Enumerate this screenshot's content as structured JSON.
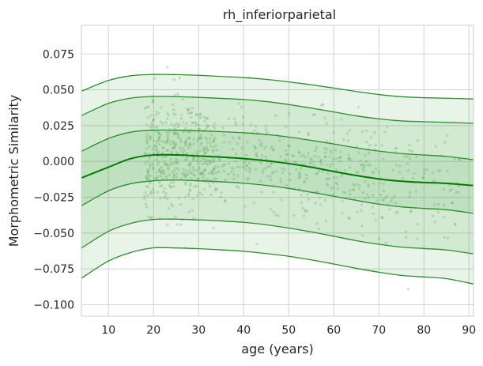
{
  "chart_data": {
    "type": "area",
    "title": "rh_inferiorparietal",
    "xlabel": "age (years)",
    "ylabel": "Morphometric Similarity",
    "xlim": [
      4,
      91
    ],
    "ylim": [
      -0.108,
      0.095
    ],
    "grid": true,
    "legend": "none",
    "xticks": [
      10,
      20,
      30,
      40,
      50,
      60,
      70,
      80,
      90
    ],
    "xtick_labels": [
      "10",
      "20",
      "30",
      "40",
      "50",
      "60",
      "70",
      "80",
      "90"
    ],
    "yticks": [
      0.075,
      0.05,
      0.025,
      0.0,
      -0.025,
      -0.05,
      -0.075,
      -0.1
    ],
    "ytick_labels": [
      "0.075",
      "0.050",
      "0.025",
      "0.000",
      "−0.025",
      "−0.050",
      "−0.075",
      "−0.100"
    ],
    "x": [
      4,
      10,
      15,
      20,
      25,
      30,
      35,
      40,
      45,
      50,
      55,
      60,
      65,
      70,
      75,
      80,
      85,
      91
    ],
    "centiles": [
      {
        "level": "upper_outer",
        "values": [
          0.049,
          0.0565,
          0.0598,
          0.0607,
          0.0606,
          0.0601,
          0.0593,
          0.0585,
          0.0573,
          0.0555,
          0.0535,
          0.0512,
          0.0488,
          0.0467,
          0.0452,
          0.0445,
          0.0441,
          0.0436
        ]
      },
      {
        "level": "upper_mid",
        "values": [
          0.032,
          0.0405,
          0.0442,
          0.0453,
          0.0452,
          0.0447,
          0.044,
          0.0432,
          0.0418,
          0.0397,
          0.0372,
          0.0345,
          0.0318,
          0.0297,
          0.0283,
          0.0277,
          0.0273,
          0.0266
        ]
      },
      {
        "level": "upper_inner",
        "values": [
          0.007,
          0.016,
          0.0205,
          0.0218,
          0.0218,
          0.0214,
          0.0208,
          0.02,
          0.0188,
          0.017,
          0.0147,
          0.0122,
          0.0095,
          0.0072,
          0.0055,
          0.0045,
          0.0035,
          0.0012
        ]
      },
      {
        "level": "median",
        "values": [
          -0.0115,
          -0.004,
          0.002,
          0.0045,
          0.0045,
          0.0038,
          0.003,
          0.002,
          0.0005,
          -0.0015,
          -0.004,
          -0.007,
          -0.0098,
          -0.0122,
          -0.0138,
          -0.0147,
          -0.0153,
          -0.0168
        ]
      },
      {
        "level": "lower_inner",
        "values": [
          -0.031,
          -0.0205,
          -0.0155,
          -0.0135,
          -0.013,
          -0.0135,
          -0.0142,
          -0.0152,
          -0.0167,
          -0.0188,
          -0.0215,
          -0.0243,
          -0.0272,
          -0.0298,
          -0.0317,
          -0.0328,
          -0.0337,
          -0.0362
        ]
      },
      {
        "level": "lower_mid",
        "values": [
          -0.0605,
          -0.0488,
          -0.0432,
          -0.0405,
          -0.0403,
          -0.0408,
          -0.0415,
          -0.0425,
          -0.0442,
          -0.0465,
          -0.0492,
          -0.0522,
          -0.0553,
          -0.0578,
          -0.0598,
          -0.0608,
          -0.0618,
          -0.0645
        ]
      },
      {
        "level": "lower_outer",
        "values": [
          -0.0815,
          -0.0695,
          -0.0635,
          -0.0603,
          -0.0604,
          -0.0609,
          -0.0617,
          -0.0627,
          -0.0643,
          -0.0662,
          -0.0687,
          -0.0716,
          -0.0746,
          -0.0773,
          -0.0795,
          -0.0806,
          -0.0818,
          -0.0855
        ]
      }
    ],
    "points_n": 900,
    "colors": {
      "line": "#2e8b2e",
      "median": "#007a00",
      "band": "#49a849",
      "point": "#5aa55a",
      "grid": "#d5d5d5",
      "frame": "#cccccc"
    }
  }
}
